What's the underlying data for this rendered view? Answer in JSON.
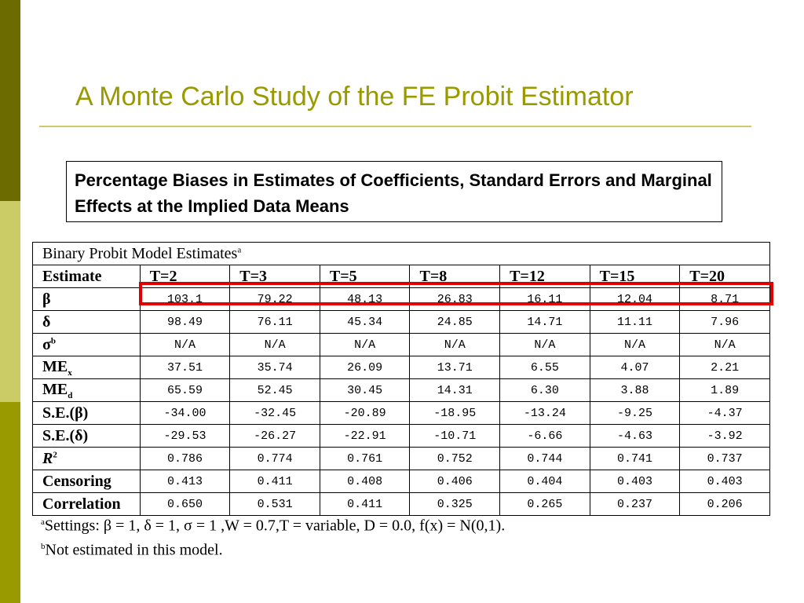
{
  "slide": {
    "title": "A Monte Carlo Study of the FE Probit Estimator",
    "caption": "Percentage Biases in Estimates of Coefficients, Standard Errors and Marginal Effects at the Implied Data Means",
    "colors": {
      "accent": "#999900",
      "dark_bar": "#6b6b00",
      "light_bar": "#cccc66",
      "highlight": "#e00000"
    }
  },
  "table": {
    "header_title": "Binary Probit Model Estimates",
    "header_title_sup": "a",
    "estimate_label": "Estimate",
    "columns": [
      "T=2",
      "T=3",
      "T=5",
      "T=8",
      "T=12",
      "T=15",
      "T=20"
    ],
    "rows": [
      {
        "label": "β",
        "label_sub": "",
        "label_sup": "",
        "values": [
          "103.1",
          "79.22",
          "48.13",
          "26.83",
          "16.11",
          "12.04",
          "8.71"
        ]
      },
      {
        "label": "δ",
        "label_sub": "",
        "label_sup": "",
        "values": [
          "98.49",
          "76.11",
          "45.34",
          "24.85",
          "14.71",
          "11.11",
          "7.96"
        ]
      },
      {
        "label": "σ",
        "label_sub": "",
        "label_sup": "b",
        "values": [
          "N/A",
          "N/A",
          "N/A",
          "N/A",
          "N/A",
          "N/A",
          "N/A"
        ]
      },
      {
        "label": "ME",
        "label_sub": "x",
        "label_sup": "",
        "values": [
          "37.51",
          "35.74",
          "26.09",
          "13.71",
          "6.55",
          "4.07",
          "2.21"
        ]
      },
      {
        "label": "ME",
        "label_sub": "d",
        "label_sup": "",
        "values": [
          "65.59",
          "52.45",
          "30.45",
          "14.31",
          "6.30",
          "3.88",
          "1.89"
        ]
      },
      {
        "label": "S.E.(β)",
        "label_sub": "",
        "label_sup": "",
        "values": [
          "-34.00",
          "-32.45",
          "-20.89",
          "-18.95",
          "-13.24",
          "-9.25",
          "-4.37"
        ]
      },
      {
        "label": "S.E.(δ)",
        "label_sub": "",
        "label_sup": "",
        "values": [
          "-29.53",
          "-26.27",
          "-22.91",
          "-10.71",
          "-6.66",
          "-4.63",
          "-3.92"
        ]
      },
      {
        "label": "R",
        "label_sub": "",
        "label_sup": "2",
        "values": [
          "0.786",
          "0.774",
          "0.761",
          "0.752",
          "0.744",
          "0.741",
          "0.737"
        ]
      },
      {
        "label": "Censoring",
        "label_sub": "",
        "label_sup": "",
        "values": [
          "0.413",
          "0.411",
          "0.408",
          "0.406",
          "0.404",
          "0.403",
          "0.403"
        ]
      },
      {
        "label": "Correlation",
        "label_sub": "",
        "label_sup": "",
        "values": [
          "0.650",
          "0.531",
          "0.411",
          "0.325",
          "0.265",
          "0.237",
          "0.206"
        ]
      }
    ]
  },
  "notes": {
    "a_sup": "a",
    "a_text": "Settings: β = 1, δ = 1, σ = 1 ,W = 0.7,T = variable, D = 0.0, f(x) = N(0,1).",
    "b_sup": "b",
    "b_text": "Not estimated in this model."
  }
}
